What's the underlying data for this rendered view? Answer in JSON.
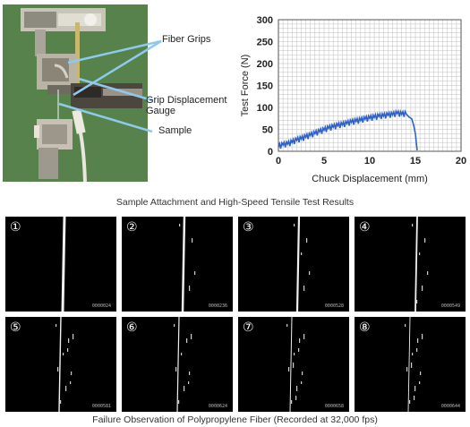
{
  "photo": {
    "labels": {
      "fiber_grips": "Fiber Grips",
      "grip_displacement_gauge_1": "Grip Displacement",
      "grip_displacement_gauge_2": "Gauge",
      "sample": "Sample"
    }
  },
  "chart_data": {
    "type": "line",
    "title": "",
    "xlabel": "Chuck Displacement (mm)",
    "ylabel": "Test Force (N)",
    "xlim": [
      0,
      20
    ],
    "ylim": [
      0,
      300
    ],
    "xticks": [
      0,
      5,
      10,
      15,
      20
    ],
    "yticks": [
      0,
      50,
      100,
      150,
      200,
      250,
      300
    ],
    "grid": true,
    "series": [
      {
        "color": "#2f62c8",
        "x": [
          0,
          0.5,
          1,
          1.5,
          2,
          2.5,
          3,
          3.5,
          4,
          4.5,
          5,
          5.5,
          6,
          6.5,
          7,
          7.5,
          8,
          8.5,
          9,
          9.5,
          10,
          10.5,
          11,
          11.5,
          12,
          12.5,
          13,
          13.5,
          14,
          14.3,
          14.6,
          14.8,
          15.0,
          15.1,
          15.2
        ],
        "y": [
          10,
          14,
          16,
          20,
          25,
          28,
          32,
          36,
          40,
          44,
          48,
          52,
          55,
          58,
          60,
          63,
          66,
          68,
          70,
          73,
          75,
          77,
          79,
          80,
          82,
          83,
          86,
          84,
          85,
          78,
          74,
          60,
          40,
          20,
          2
        ]
      }
    ]
  },
  "captions": {
    "top": "Sample Attachment and High-Speed Tensile Test Results",
    "bottom": "Failure Observation of Polypropylene Fiber (Recorded at 32,000 fps)"
  },
  "frames": [
    {
      "label": "①",
      "stamp": "0000024"
    },
    {
      "label": "②",
      "stamp": "0000236"
    },
    {
      "label": "③",
      "stamp": "0000528"
    },
    {
      "label": "④",
      "stamp": "0000549"
    },
    {
      "label": "⑤",
      "stamp": "0000581"
    },
    {
      "label": "⑥",
      "stamp": "0000624"
    },
    {
      "label": "⑦",
      "stamp": "0000658"
    },
    {
      "label": "⑧",
      "stamp": "0000644"
    }
  ],
  "colors": {
    "photo_background": "#5f8a52",
    "callout_line": "#8ec9ee",
    "chart_line": "#2f62c8",
    "grid": "#bdbdbd"
  }
}
